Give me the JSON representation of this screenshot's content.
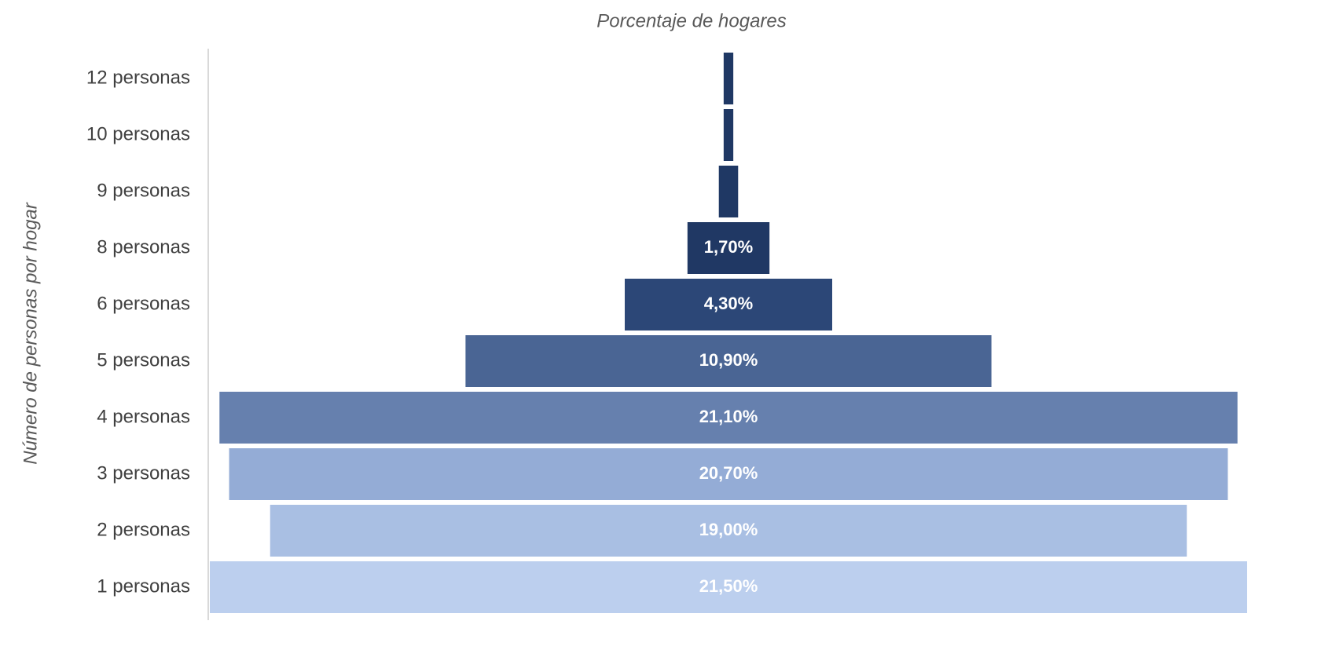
{
  "chart_data": {
    "type": "funnel",
    "title": "Porcentaje de hogares",
    "y_label": "Número de personas por hogar",
    "categories": [
      "12 personas",
      "10 personas",
      "9 personas",
      "8 personas",
      "6 personas",
      "5 personas",
      "4 personas",
      "3 personas",
      "2 personas",
      "1 personas"
    ],
    "values": [
      0.2,
      0.2,
      0.4,
      1.7,
      4.3,
      10.9,
      21.1,
      20.7,
      19.0,
      21.5
    ],
    "value_labels": [
      null,
      null,
      null,
      "1,70%",
      "4,30%",
      "10,90%",
      "21,10%",
      "20,70%",
      "19,00%",
      "21,50%"
    ],
    "colors": [
      "#1f3864",
      "#1f3864",
      "#1f3864",
      "#203864",
      "#2c4777",
      "#4a6594",
      "#6680ae",
      "#94acd6",
      "#a9bfe3",
      "#bccfee"
    ]
  }
}
